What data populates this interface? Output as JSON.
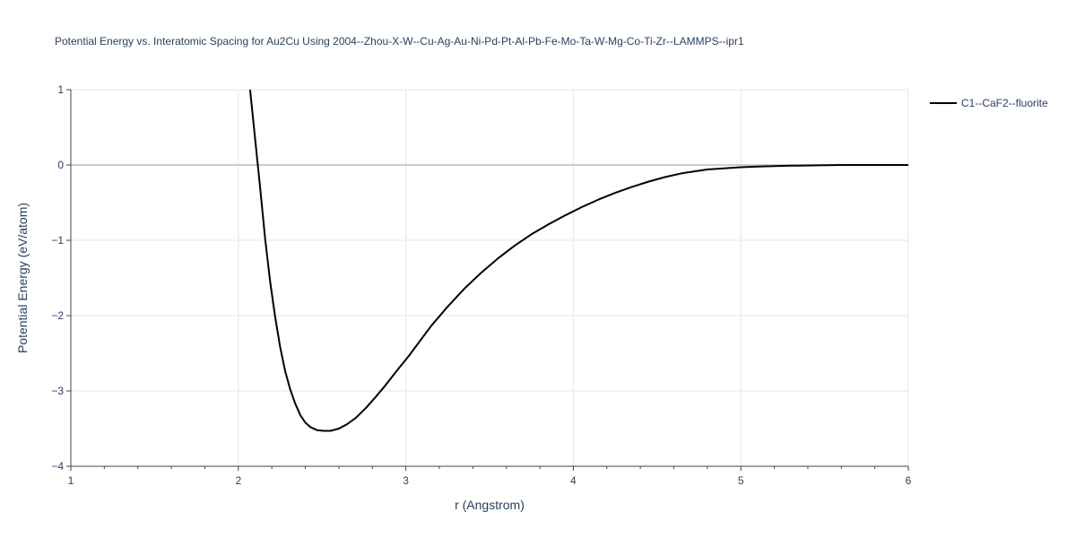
{
  "chart_data": {
    "type": "line",
    "title": "Potential Energy vs. Interatomic Spacing for Au2Cu Using 2004--Zhou-X-W--Cu-Ag-Au-Ni-Pd-Pt-Al-Pb-Fe-Mo-Ta-W-Mg-Co-Ti-Zr--LAMMPS--ipr1",
    "xlabel": "r (Angstrom)",
    "ylabel": "Potential Energy (eV/atom)",
    "xlim": [
      1,
      6
    ],
    "ylim": [
      -4,
      1
    ],
    "x_ticks": [
      1,
      2,
      3,
      4,
      5,
      6
    ],
    "y_ticks": [
      1,
      0,
      -1,
      -2,
      -3,
      -4
    ],
    "x_tick_labels": [
      "1",
      "2",
      "3",
      "4",
      "5",
      "6"
    ],
    "y_tick_labels": [
      "1",
      "0",
      "−1",
      "−2",
      "−3",
      "−4"
    ],
    "grid": true,
    "legend_position": "top-right",
    "series": [
      {
        "name": "C1--CaF2--fluorite",
        "color": "#000000",
        "x": [
          2.07,
          2.1,
          2.13,
          2.16,
          2.19,
          2.22,
          2.25,
          2.28,
          2.31,
          2.34,
          2.37,
          2.4,
          2.43,
          2.47,
          2.51,
          2.55,
          2.6,
          2.65,
          2.7,
          2.76,
          2.82,
          2.88,
          2.95,
          3.02,
          3.08,
          3.15,
          3.25,
          3.35,
          3.45,
          3.55,
          3.65,
          3.75,
          3.85,
          3.95,
          4.05,
          4.15,
          4.25,
          4.35,
          4.45,
          4.55,
          4.65,
          4.8,
          5.0,
          5.1,
          5.3,
          5.6,
          6.0
        ],
        "y": [
          1.0,
          0.35,
          -0.3,
          -0.98,
          -1.55,
          -2.02,
          -2.42,
          -2.74,
          -2.98,
          -3.17,
          -3.32,
          -3.42,
          -3.48,
          -3.52,
          -3.53,
          -3.53,
          -3.5,
          -3.44,
          -3.36,
          -3.23,
          -3.08,
          -2.92,
          -2.72,
          -2.53,
          -2.35,
          -2.14,
          -1.88,
          -1.64,
          -1.43,
          -1.24,
          -1.07,
          -0.92,
          -0.79,
          -0.67,
          -0.56,
          -0.46,
          -0.37,
          -0.29,
          -0.22,
          -0.16,
          -0.11,
          -0.06,
          -0.03,
          -0.02,
          -0.01,
          0.0,
          0.0
        ]
      }
    ]
  }
}
